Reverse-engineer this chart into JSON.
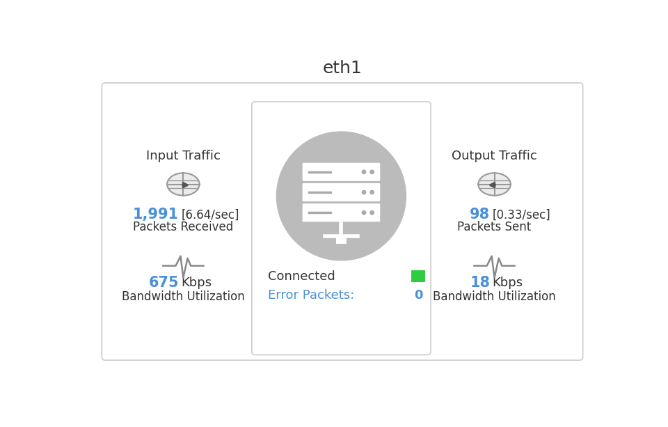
{
  "title": "eth1",
  "title_fontsize": 18,
  "title_color": "#333333",
  "background_color": "#ffffff",
  "outer_box_color": "#cccccc",
  "center_box_color": "#cccccc",
  "input_label": "Input Traffic",
  "output_label": "Output Traffic",
  "packets_received_value": "1,991",
  "packets_received_rate": "[6.64/sec]",
  "packets_received_label": "Packets Received",
  "packets_sent_value": "98",
  "packets_sent_rate": "[0.33/sec]",
  "packets_sent_label": "Packets Sent",
  "bw_in_value": "675",
  "bw_in_unit": "Kbps",
  "bw_in_label": "Bandwidth Utilization",
  "bw_out_value": "18",
  "bw_out_unit": "Kbps",
  "bw_out_label": "Bandwidth Utilization",
  "connected_label": "Connected",
  "error_packets_label": "Error Packets:",
  "error_packets_value": "0",
  "status_color": "#2ecc40",
  "blue_color": "#4a90d9",
  "text_color": "#333333",
  "error_label_color": "#4a90d9",
  "error_value_color": "#4a90d9",
  "server_circle_color": "#bbbbbb",
  "globe_color": "#999999",
  "heartbeat_color": "#888888"
}
